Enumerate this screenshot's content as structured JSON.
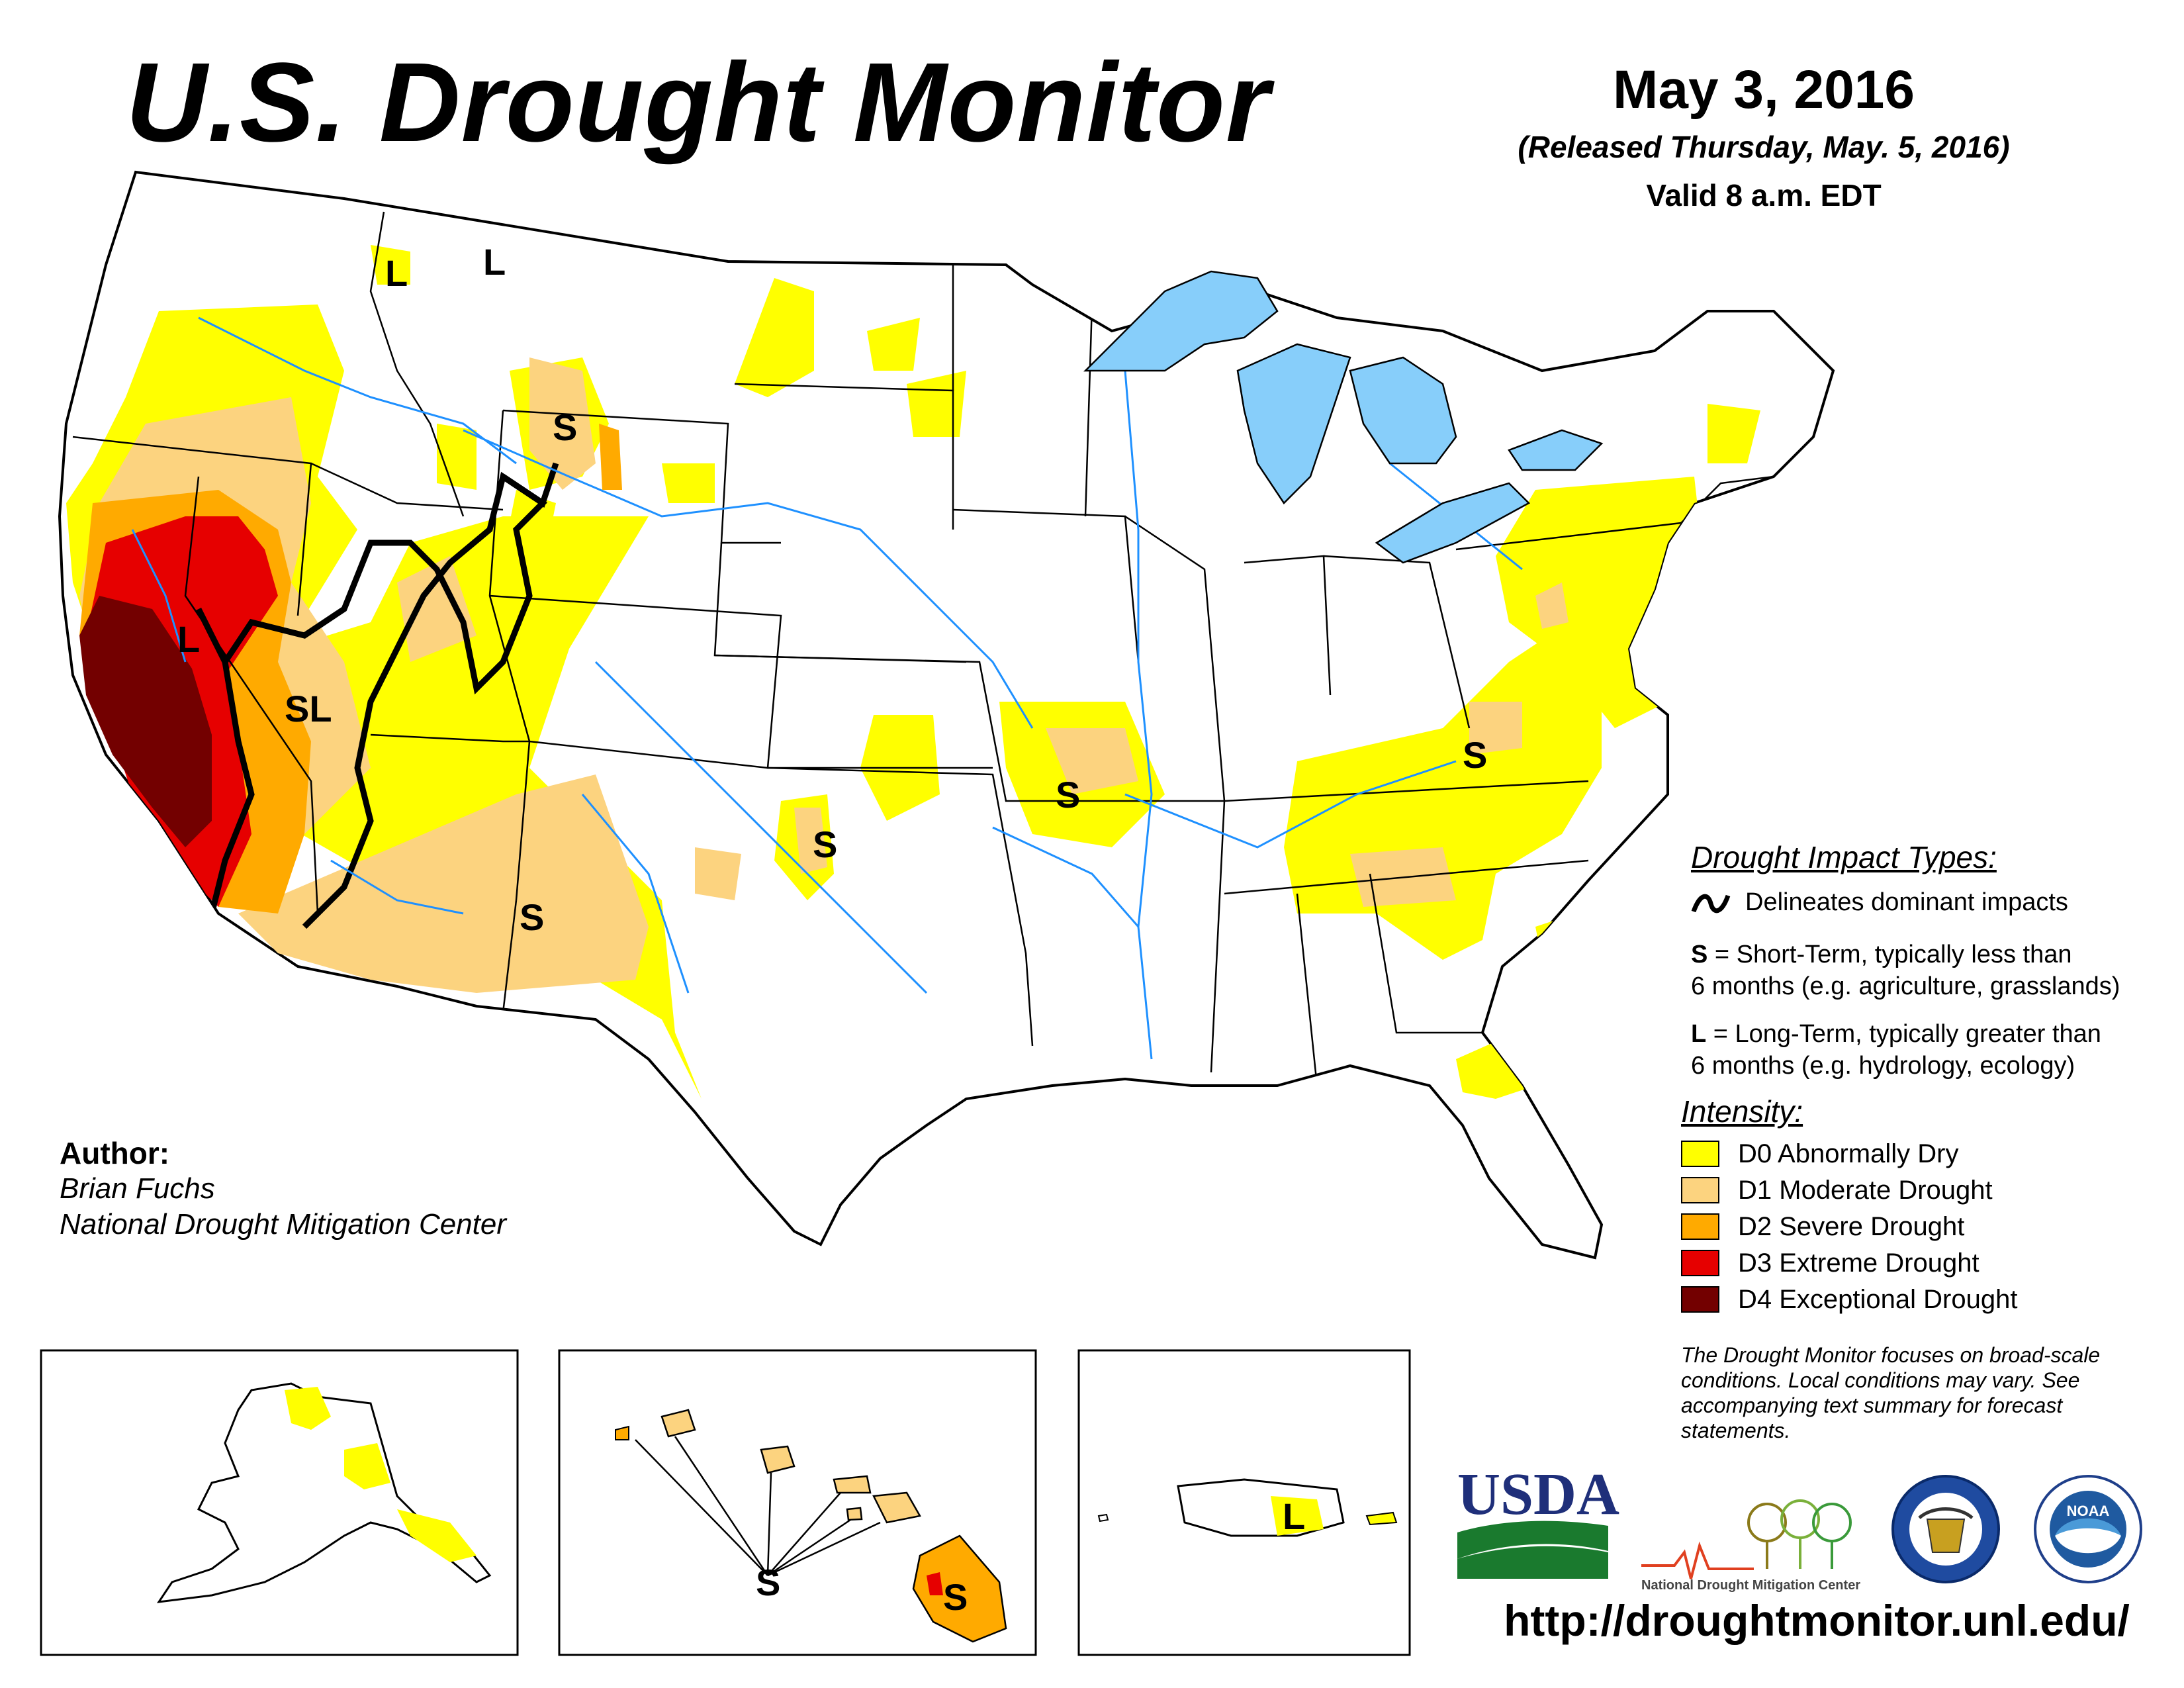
{
  "header": {
    "title": "U.S. Drought Monitor",
    "date": "May 3, 2016",
    "released": "(Released Thursday, May. 5, 2016)",
    "valid": "Valid 8 a.m. EDT"
  },
  "map": {
    "impact_labels": {
      "id_north_1": "L",
      "mt_north": "L",
      "wy_north": "S",
      "nv_sl": "SL",
      "ca_l": "L",
      "nm": "S",
      "ok": "S",
      "mo": "S",
      "va_nc": "S",
      "hi_chain": "S",
      "hi_big": "S",
      "pr": "L"
    }
  },
  "author": {
    "heading": "Author:",
    "name": "Brian Fuchs",
    "org": "National Drought Mitigation Center"
  },
  "impact_types": {
    "heading": "Drought Impact Types:",
    "line_desc": "Delineates dominant impacts",
    "short_code": "S",
    "short_desc_1": " = Short-Term, typically less than",
    "short_desc_2": "6 months (e.g. agriculture, grasslands)",
    "long_code": "L",
    "long_desc_1": " = Long-Term, typically greater than",
    "long_desc_2": "6 months (e.g. hydrology, ecology)"
  },
  "intensity": {
    "heading": "Intensity:",
    "levels": [
      {
        "label": "D0 Abnormally Dry",
        "color": "#ffff00"
      },
      {
        "label": "D1 Moderate Drought",
        "color": "#fcd37f"
      },
      {
        "label": "D2 Severe Drought",
        "color": "#ffaa00"
      },
      {
        "label": "D3 Extreme Drought",
        "color": "#e60000"
      },
      {
        "label": "D4 Exceptional Drought",
        "color": "#730000"
      }
    ]
  },
  "disclaimer": "The Drought Monitor focuses on broad-scale conditions. Local conditions may vary. See accompanying text summary for forecast statements.",
  "logos": {
    "usda": "USDA",
    "ndmc": "National Drought Mitigation Center",
    "commerce": "commerce-seal-icon",
    "noaa": "NOAA"
  },
  "url": "http://droughtmonitor.unl.edu/"
}
